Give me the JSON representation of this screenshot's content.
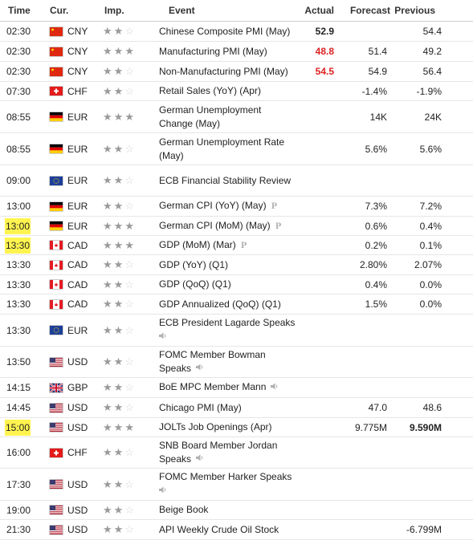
{
  "headers": {
    "time": "Time",
    "cur": "Cur.",
    "imp": "Imp.",
    "event": "Event",
    "actual": "Actual",
    "forecast": "Forecast",
    "previous": "Previous"
  },
  "rows": [
    {
      "time": "02:30",
      "cur": "CNY",
      "flag": "cn",
      "imp": 2,
      "event": "Chinese Composite PMI (May)",
      "actual": "52.9",
      "actual_style": "bold",
      "forecast": "",
      "previous": "54.4",
      "h": 24
    },
    {
      "time": "02:30",
      "cur": "CNY",
      "flag": "cn",
      "imp": 3,
      "event": "Manufacturing PMI (May)",
      "actual": "48.8",
      "actual_style": "red",
      "forecast": "51.4",
      "previous": "49.2",
      "h": 24
    },
    {
      "time": "02:30",
      "cur": "CNY",
      "flag": "cn",
      "imp": 2,
      "event": "Non-Manufacturing PMI (May)",
      "actual": "54.5",
      "actual_style": "red",
      "forecast": "54.9",
      "previous": "56.4",
      "h": 24
    },
    {
      "time": "07:30",
      "cur": "CHF",
      "flag": "ch",
      "imp": 2,
      "event": "Retail Sales (YoY) (Apr)",
      "actual": "",
      "forecast": "-1.4%",
      "previous": "-1.9%",
      "h": 23
    },
    {
      "time": "08:55",
      "cur": "EUR",
      "flag": "de",
      "imp": 3,
      "event": "German Unemployment Change (May)",
      "actual": "",
      "forecast": "14K",
      "previous": "24K",
      "h": 39
    },
    {
      "time": "08:55",
      "cur": "EUR",
      "flag": "de",
      "imp": 2,
      "event": "German Unemployment Rate (May)",
      "actual": "",
      "forecast": "5.6%",
      "previous": "5.6%",
      "h": 39
    },
    {
      "time": "09:00",
      "cur": "EUR",
      "flag": "eu",
      "imp": 2,
      "event": "ECB Financial Stability Review",
      "actual": "",
      "forecast": "",
      "previous": "",
      "h": 38
    },
    {
      "time": "13:00",
      "cur": "EUR",
      "flag": "de",
      "imp": 2,
      "event": "German CPI (YoY) (May)",
      "ptag": "P",
      "actual": "",
      "forecast": "7.3%",
      "previous": "7.2%",
      "h": 24
    },
    {
      "time": "13:00",
      "cur": "EUR",
      "flag": "de",
      "imp": 3,
      "event": "German CPI (MoM) (May)",
      "ptag": "P",
      "highlight": true,
      "actual": "",
      "forecast": "0.6%",
      "previous": "0.4%",
      "h": 23
    },
    {
      "time": "13:30",
      "cur": "CAD",
      "flag": "ca",
      "imp": 3,
      "event": "GDP (MoM) (Mar)",
      "ptag": "P",
      "highlight": true,
      "actual": "",
      "forecast": "0.2%",
      "previous": "0.1%",
      "h": 23
    },
    {
      "time": "13:30",
      "cur": "CAD",
      "flag": "ca",
      "imp": 2,
      "event": "GDP (YoY) (Q1)",
      "actual": "",
      "forecast": "2.80%",
      "previous": "2.07%",
      "h": 24
    },
    {
      "time": "13:30",
      "cur": "CAD",
      "flag": "ca",
      "imp": 2,
      "event": "GDP (QoQ) (Q1)",
      "actual": "",
      "forecast": "0.4%",
      "previous": "0.0%",
      "h": 23
    },
    {
      "time": "13:30",
      "cur": "CAD",
      "flag": "ca",
      "imp": 2,
      "event": "GDP Annualized (QoQ) (Q1)",
      "actual": "",
      "forecast": "1.5%",
      "previous": "0.0%",
      "h": 24
    },
    {
      "time": "13:30",
      "cur": "EUR",
      "flag": "eu",
      "imp": 2,
      "event": "ECB President Lagarde Speaks",
      "speaker": true,
      "speaker_newline": true,
      "actual": "",
      "forecast": "",
      "previous": "",
      "h": 39
    },
    {
      "time": "13:50",
      "cur": "USD",
      "flag": "us",
      "imp": 2,
      "event": "FOMC Member Bowman Speaks",
      "speaker": true,
      "actual": "",
      "forecast": "",
      "previous": "",
      "h": 38
    },
    {
      "time": "14:15",
      "cur": "GBP",
      "flag": "gb",
      "imp": 2,
      "event": "BoE MPC Member Mann",
      "speaker": true,
      "actual": "",
      "forecast": "",
      "previous": "",
      "h": 24
    },
    {
      "time": "14:45",
      "cur": "USD",
      "flag": "us",
      "imp": 2,
      "event": "Chicago PMI (May)",
      "actual": "",
      "forecast": "47.0",
      "previous": "48.6",
      "h": 24
    },
    {
      "time": "15:00",
      "cur": "USD",
      "flag": "us",
      "imp": 3,
      "event": "JOLTs Job Openings (Apr)",
      "highlight": true,
      "actual": "",
      "forecast": "9.775M",
      "previous": "9.590M",
      "previous_style": "bold",
      "h": 23
    },
    {
      "time": "16:00",
      "cur": "CHF",
      "flag": "ch",
      "imp": 2,
      "event": "SNB Board Member Jordan Speaks",
      "speaker": true,
      "actual": "",
      "forecast": "",
      "previous": "",
      "h": 38
    },
    {
      "time": "17:30",
      "cur": "USD",
      "flag": "us",
      "imp": 2,
      "event": "FOMC Member Harker Speaks",
      "speaker": true,
      "speaker_newline": true,
      "actual": "",
      "forecast": "",
      "previous": "",
      "h": 39
    },
    {
      "time": "19:00",
      "cur": "USD",
      "flag": "us",
      "imp": 2,
      "event": "Beige Book",
      "actual": "",
      "forecast": "",
      "previous": "",
      "h": 23
    },
    {
      "time": "21:30",
      "cur": "USD",
      "flag": "us",
      "imp": 2,
      "event": "API Weekly Crude Oil Stock",
      "actual": "",
      "forecast": "",
      "previous": "-6.799M",
      "h": 24
    }
  ],
  "colors": {
    "highlight": "#fff44f",
    "negative": "#dd2222",
    "star_on": "#9a9a9a",
    "star_off": "#d6d6d6"
  },
  "icons": {
    "speaker": "speaker-icon",
    "preliminary": "preliminary-p-icon",
    "star": "star-icon"
  }
}
